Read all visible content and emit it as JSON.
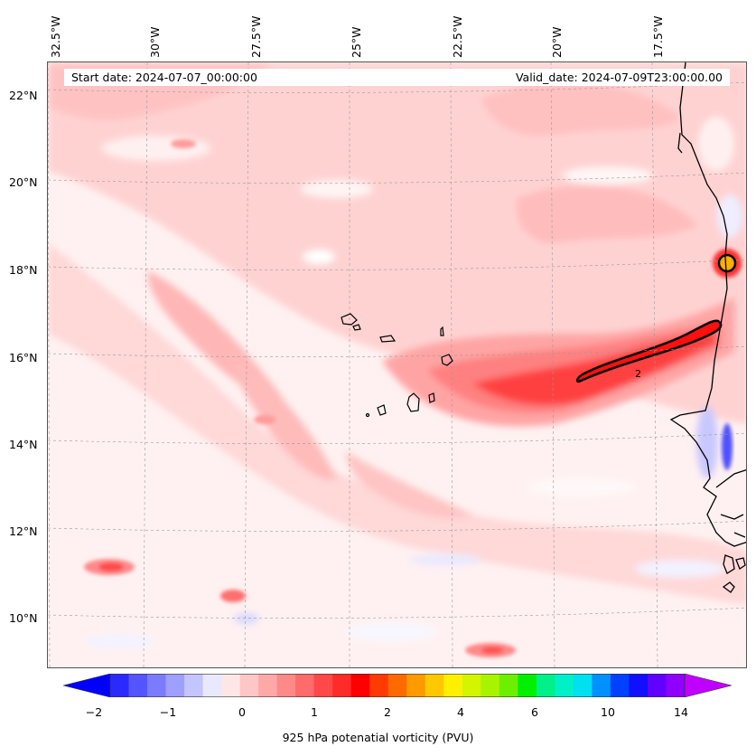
{
  "map": {
    "title_start": "Start date: 2024-07-07_00:00:00",
    "title_valid": "Valid_date: 2024-07-09T23:00:00.00",
    "lon_labels": [
      "32.5°W",
      "30°W",
      "27.5°W",
      "25°W",
      "22.5°W",
      "20°W",
      "17.5°W"
    ],
    "lat_labels": [
      "22°N",
      "20°N",
      "18°N",
      "16°N",
      "14°N",
      "12°N",
      "10°N"
    ],
    "contour_label": "2",
    "field": "potential vorticity",
    "region": "Eastern tropical Atlantic, Cabo Verde and West African coast"
  },
  "colorbar": {
    "label": "925 hPa potenatial vorticity (PVU)",
    "ticks": [
      "−2",
      "−1",
      "0",
      "1",
      "2",
      "4",
      "6",
      "10",
      "14"
    ],
    "colors": [
      "#0000ff",
      "#2a2aff",
      "#5555ff",
      "#7b7bff",
      "#9f9fff",
      "#c4c4ff",
      "#e8e8ff",
      "#ffe6e6",
      "#ffc6c6",
      "#ffa8a8",
      "#ff8888",
      "#ff6a6a",
      "#ff4848",
      "#ff2a2a",
      "#ff0000",
      "#ff3a00",
      "#ff6a00",
      "#ff9a00",
      "#ffc800",
      "#fff000",
      "#d4f400",
      "#a8f400",
      "#6cf000",
      "#00f000",
      "#00f08a",
      "#00f0c8",
      "#00e0f0",
      "#0090ff",
      "#0040ff",
      "#1010ff",
      "#6000ff",
      "#9000ff",
      "#c000ff"
    ]
  }
}
